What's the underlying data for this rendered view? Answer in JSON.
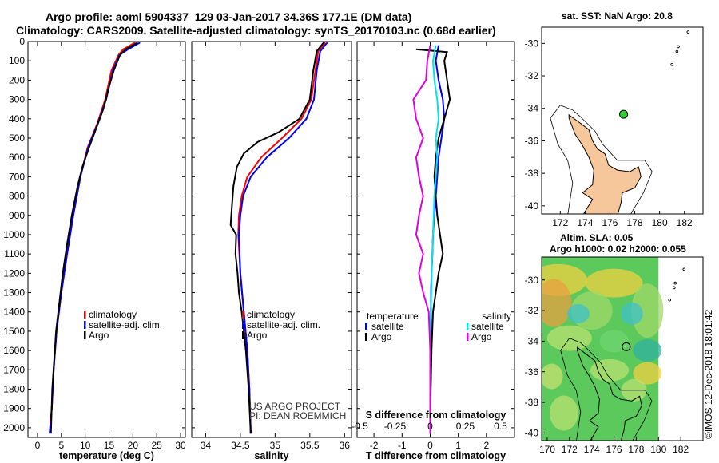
{
  "header": {
    "line1": "Argo profile: aoml 5904337_129 03-Jan-2017 34.36S 177.1E (DM data)",
    "line2": "Climatology: CARS2009. Satellite-adjusted climatology: synTS_20170103.nc (0.68d earlier)"
  },
  "colors": {
    "climatology": "#ff0000",
    "satellite": "#0000ff",
    "argo": "#000000",
    "satellite_s": "#00e5e5",
    "argo_s": "#e000e0",
    "land": "#f5c79a"
  },
  "chart_data": [
    {
      "type": "line",
      "xlabel": "temperature (deg C)",
      "ylabel": "",
      "xlim": [
        -2,
        31
      ],
      "ylim": [
        2050,
        0
      ],
      "y_reversed": true,
      "xticks": [
        0,
        5,
        10,
        15,
        20,
        25,
        30
      ],
      "yticks": [
        0,
        100,
        200,
        300,
        400,
        500,
        600,
        700,
        800,
        900,
        1000,
        1100,
        1200,
        1300,
        1400,
        1500,
        1600,
        1700,
        1800,
        1900,
        2000
      ],
      "legend": [
        "climatology",
        "satellite-adj. clim.",
        "Argo"
      ],
      "series": [
        {
          "name": "climatology",
          "color": "#ff0000",
          "points": [
            [
              20.5,
              5
            ],
            [
              18,
              40
            ],
            [
              17,
              70
            ],
            [
              15.5,
              150
            ],
            [
              14.2,
              300
            ],
            [
              12.6,
              420
            ],
            [
              10.5,
              550
            ],
            [
              9,
              700
            ],
            [
              7.5,
              900
            ],
            [
              6.2,
              1100
            ],
            [
              5,
              1300
            ],
            [
              4,
              1500
            ],
            [
              3.4,
              1700
            ],
            [
              3,
              1900
            ],
            [
              2.5,
              2030
            ]
          ]
        },
        {
          "name": "satellite-adj. clim.",
          "color": "#0000ff",
          "points": [
            [
              21.5,
              5
            ],
            [
              19,
              40
            ],
            [
              17.2,
              70
            ],
            [
              15.8,
              150
            ],
            [
              14.4,
              300
            ],
            [
              12.7,
              420
            ],
            [
              10.6,
              550
            ],
            [
              9,
              700
            ],
            [
              7.5,
              900
            ],
            [
              6.2,
              1100
            ],
            [
              5,
              1300
            ],
            [
              4,
              1500
            ],
            [
              3.4,
              1700
            ],
            [
              3,
              1900
            ],
            [
              2.6,
              2030
            ]
          ]
        },
        {
          "name": "Argo",
          "color": "#000000",
          "points": [
            [
              21,
              5
            ],
            [
              18.5,
              40
            ],
            [
              17.3,
              70
            ],
            [
              16,
              150
            ],
            [
              14.8,
              250
            ],
            [
              13.8,
              350
            ],
            [
              12.3,
              450
            ],
            [
              10.8,
              550
            ],
            [
              9.4,
              650
            ],
            [
              8.4,
              750
            ],
            [
              7.2,
              900
            ],
            [
              6.2,
              1050
            ],
            [
              5.3,
              1200
            ],
            [
              4.6,
              1350
            ],
            [
              3.9,
              1500
            ],
            [
              3.5,
              1650
            ],
            [
              3.1,
              1800
            ],
            [
              2.9,
              1950
            ],
            [
              2.8,
              2030
            ]
          ]
        }
      ]
    },
    {
      "type": "line",
      "xlabel": "salinity",
      "ylabel": "",
      "xlim": [
        33.8,
        36.1
      ],
      "ylim": [
        2050,
        0
      ],
      "y_reversed": true,
      "xticks": [
        34,
        34.5,
        35,
        35.5,
        36
      ],
      "legend": [
        "climatology",
        "satellite-adj. clim.",
        "Argo"
      ],
      "annotation": [
        "US ARGO PROJECT",
        "PI: DEAN ROEMMICH"
      ],
      "series": [
        {
          "name": "climatology",
          "color": "#ff0000",
          "points": [
            [
              35.72,
              5
            ],
            [
              35.62,
              50
            ],
            [
              35.58,
              150
            ],
            [
              35.52,
              300
            ],
            [
              35.38,
              400
            ],
            [
              35.1,
              500
            ],
            [
              34.8,
              600
            ],
            [
              34.6,
              700
            ],
            [
              34.52,
              800
            ],
            [
              34.48,
              900
            ],
            [
              34.47,
              1000
            ],
            [
              34.5,
              1200
            ],
            [
              34.55,
              1400
            ],
            [
              34.6,
              1600
            ],
            [
              34.63,
              1800
            ],
            [
              34.65,
              2030
            ]
          ]
        },
        {
          "name": "satellite-adj. clim.",
          "color": "#0000ff",
          "points": [
            [
              35.75,
              5
            ],
            [
              35.65,
              50
            ],
            [
              35.6,
              150
            ],
            [
              35.56,
              300
            ],
            [
              35.45,
              400
            ],
            [
              35.2,
              500
            ],
            [
              34.88,
              600
            ],
            [
              34.65,
              700
            ],
            [
              34.54,
              800
            ],
            [
              34.5,
              900
            ],
            [
              34.48,
              1000
            ],
            [
              34.5,
              1200
            ],
            [
              34.55,
              1400
            ],
            [
              34.6,
              1600
            ],
            [
              34.63,
              1800
            ],
            [
              34.65,
              2030
            ]
          ]
        },
        {
          "name": "Argo",
          "color": "#000000",
          "points": [
            [
              35.7,
              5
            ],
            [
              35.6,
              50
            ],
            [
              35.55,
              150
            ],
            [
              35.5,
              300
            ],
            [
              35.35,
              400
            ],
            [
              35.05,
              470
            ],
            [
              34.75,
              520
            ],
            [
              34.55,
              580
            ],
            [
              34.45,
              650
            ],
            [
              34.4,
              750
            ],
            [
              34.38,
              850
            ],
            [
              34.36,
              950
            ],
            [
              34.44,
              1000
            ],
            [
              34.43,
              1100
            ],
            [
              34.46,
              1200
            ],
            [
              34.48,
              1300
            ],
            [
              34.52,
              1400
            ],
            [
              34.58,
              1600
            ],
            [
              34.62,
              1800
            ],
            [
              34.65,
              2030
            ]
          ]
        }
      ]
    },
    {
      "type": "line",
      "xlabel": "T difference from climatology",
      "xlabel2": "S difference from climatology",
      "xlim": [
        -2.6,
        3
      ],
      "ylim": [
        2050,
        0
      ],
      "y_reversed": true,
      "xticks": [
        -2,
        -1,
        0,
        1,
        2
      ],
      "xticks2": [
        "-0.5",
        "-0.25",
        "0",
        "0.25",
        "0.5"
      ],
      "legend_temperature_title": "temperature",
      "legend_salinity_title": "salinity",
      "legend_temperature": [
        "satellite",
        "Argo"
      ],
      "legend_salinity": [
        "satellite",
        "Argo"
      ],
      "series": [
        {
          "name": "temperature satellite",
          "color": "#0000ff",
          "points": [
            [
              0.3,
              20
            ],
            [
              0.2,
              100
            ],
            [
              0.3,
              200
            ],
            [
              0.45,
              300
            ],
            [
              0.5,
              400
            ],
            [
              0.4,
              500
            ],
            [
              0.3,
              600
            ],
            [
              0.25,
              700
            ],
            [
              0.2,
              800
            ],
            [
              0.15,
              900
            ],
            [
              0.1,
              1000
            ],
            [
              0.08,
              1100
            ],
            [
              0.05,
              1200
            ],
            [
              0.03,
              1300
            ],
            [
              0.02,
              1500
            ],
            [
              0,
              1700
            ],
            [
              0,
              2030
            ]
          ]
        },
        {
          "name": "temperature Argo",
          "color": "#000000",
          "points": [
            [
              -0.5,
              40
            ],
            [
              0.6,
              55
            ],
            [
              0.5,
              100
            ],
            [
              0.6,
              200
            ],
            [
              0.7,
              300
            ],
            [
              0.5,
              400
            ],
            [
              0.3,
              500
            ],
            [
              0.2,
              600
            ],
            [
              0.15,
              700
            ],
            [
              0.2,
              800
            ],
            [
              0.25,
              900
            ],
            [
              0.35,
              1000
            ],
            [
              0.45,
              1100
            ],
            [
              0.3,
              1200
            ],
            [
              0.2,
              1300
            ],
            [
              0.1,
              1400
            ],
            [
              0.05,
              1600
            ],
            [
              0.02,
              1800
            ],
            [
              0,
              2030
            ]
          ]
        },
        {
          "name": "salinity satellite",
          "color": "#00e5e5",
          "points": [
            [
              0.04,
              20
            ],
            [
              0.02,
              100
            ],
            [
              0.03,
              200
            ],
            [
              0.05,
              300
            ],
            [
              0.06,
              400
            ],
            [
              0.04,
              500
            ],
            [
              0.05,
              600
            ],
            [
              0.04,
              700
            ],
            [
              0.03,
              800
            ],
            [
              0.02,
              1000
            ],
            [
              0.01,
              1200
            ],
            [
              0.005,
              1400
            ],
            [
              0,
              1600
            ],
            [
              0,
              2030
            ]
          ]
        },
        {
          "name": "salinity Argo",
          "color": "#e000e0",
          "points": [
            [
              0,
              20
            ],
            [
              -0.02,
              100
            ],
            [
              -0.03,
              200
            ],
            [
              -0.12,
              300
            ],
            [
              -0.1,
              400
            ],
            [
              -0.05,
              500
            ],
            [
              -0.1,
              600
            ],
            [
              -0.08,
              700
            ],
            [
              -0.05,
              800
            ],
            [
              -0.08,
              900
            ],
            [
              -0.1,
              1000
            ],
            [
              -0.05,
              1100
            ],
            [
              -0.08,
              1200
            ],
            [
              -0.05,
              1300
            ],
            [
              -0.01,
              1400
            ],
            [
              0,
              1600
            ],
            [
              0,
              2030
            ]
          ]
        }
      ]
    }
  ],
  "map_top": {
    "title": "sat. SST: NaN Argo: 20.8",
    "xticks": [
      172,
      174,
      176,
      178,
      180,
      182
    ],
    "yticks": [
      -30,
      -32,
      -34,
      -36,
      -38,
      -40
    ],
    "lon": [
      170.5,
      183.5
    ],
    "lat": [
      -40.5,
      -29
    ],
    "argo_position": [
      177.1,
      -34.36
    ]
  },
  "map_bottom": {
    "title1": "Altim. SLA: 0.05",
    "title2": "Argo h1000: 0.02 h2000: 0.055",
    "xticks": [
      170,
      172,
      174,
      176,
      178,
      180,
      182
    ],
    "yticks": [
      -30,
      -32,
      -34,
      -36,
      -38,
      -40
    ],
    "lon": [
      169.5,
      184
    ],
    "lat": [
      -40.5,
      -28.5
    ],
    "argo_position": [
      177.1,
      -34.36
    ]
  },
  "footer": {
    "stamp": "©IMOS 12-Dec-2018 18:01:42"
  }
}
